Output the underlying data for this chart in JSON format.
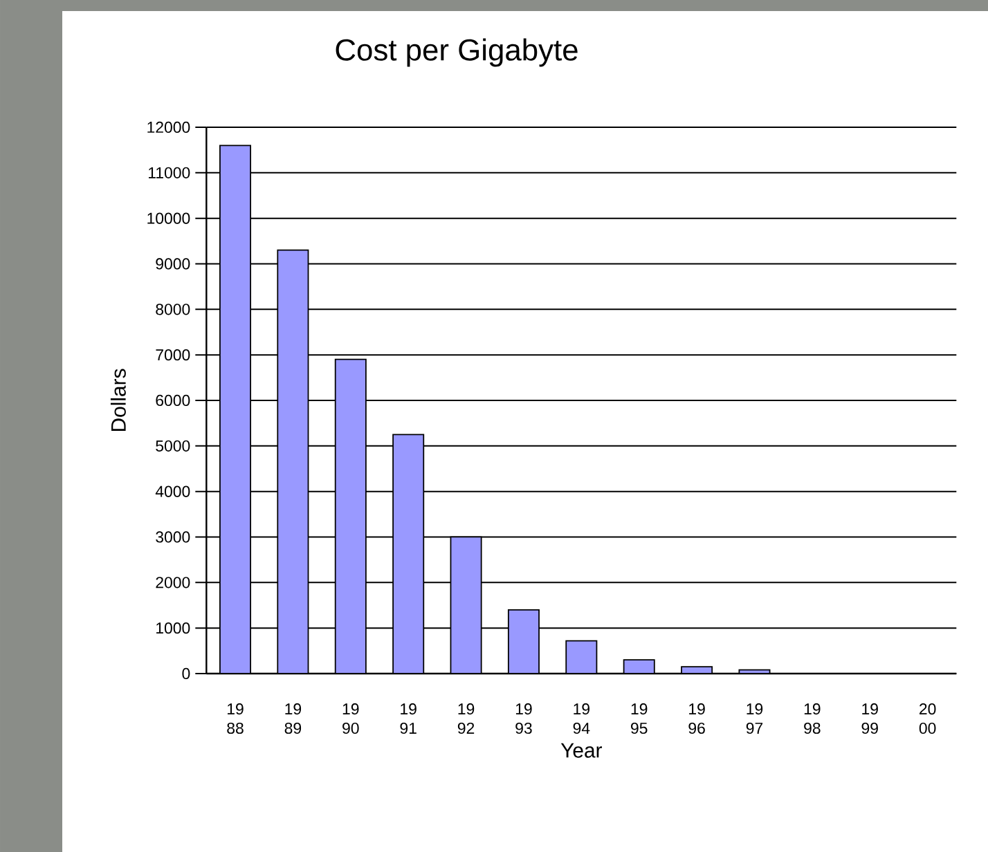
{
  "chart_data": {
    "type": "bar",
    "title": "Cost per Gigabyte",
    "xlabel": "Year",
    "ylabel": "Dollars",
    "categories": [
      "19 88",
      "19 89",
      "19 90",
      "19 91",
      "19 92",
      "19 93",
      "19 94",
      "19 95",
      "19 96",
      "19 97",
      "19 98",
      "19 99",
      "20 00"
    ],
    "values": [
      11600,
      9300,
      6900,
      5250,
      3000,
      1400,
      720,
      300,
      150,
      80,
      0,
      0,
      0
    ],
    "color": "#9999ff",
    "ylim": [
      0,
      12000
    ],
    "yticks": [
      0,
      1000,
      2000,
      3000,
      4000,
      5000,
      6000,
      7000,
      8000,
      9000,
      10000,
      11000,
      12000
    ],
    "grid": "y"
  }
}
